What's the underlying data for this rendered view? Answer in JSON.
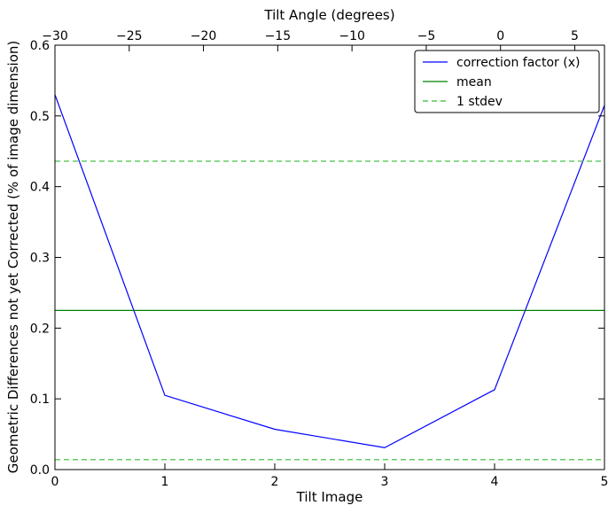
{
  "chart_data": {
    "type": "line",
    "xlabel": "Tilt Image",
    "ylabel": "Geometric Differences not yet Corrected (% of image dimension)",
    "top_xlabel": "Tilt Angle (degrees)",
    "xlim": [
      0,
      5
    ],
    "ylim": [
      0,
      0.6
    ],
    "top_xlim": [
      -30,
      7
    ],
    "x_ticks": [
      0,
      1,
      2,
      3,
      4,
      5
    ],
    "x_tick_labels": [
      "0",
      "1",
      "2",
      "3",
      "4",
      "5"
    ],
    "y_ticks": [
      0.0,
      0.1,
      0.2,
      0.3,
      0.4,
      0.5,
      0.6
    ],
    "y_tick_labels": [
      "0.0",
      "0.1",
      "0.2",
      "0.3",
      "0.4",
      "0.5",
      "0.6"
    ],
    "top_ticks": [
      -30,
      -25,
      -20,
      -15,
      -10,
      -5,
      0,
      5
    ],
    "top_tick_labels": [
      "−30",
      "−25",
      "−20",
      "−15",
      "−10",
      "−5",
      "0",
      "5"
    ],
    "grid": false,
    "legend_position": "top-right",
    "series": [
      {
        "name": "correction factor (x)",
        "style": "solid",
        "color": "#0000ff",
        "x": [
          0,
          1,
          2,
          3,
          4,
          5
        ],
        "y": [
          0.53,
          0.105,
          0.057,
          0.031,
          0.113,
          0.515
        ]
      },
      {
        "name": "mean",
        "style": "solid",
        "color": "#008000",
        "x": [
          0,
          5
        ],
        "y": [
          0.225,
          0.225
        ]
      },
      {
        "name": "1 stdev",
        "style": "dashed",
        "color": "#33bb33",
        "x": [
          0,
          5
        ],
        "y": [
          0.436,
          0.436
        ]
      },
      {
        "name": "",
        "style": "dashed",
        "color": "#33bb33",
        "x": [
          0,
          5
        ],
        "y": [
          0.014,
          0.014
        ]
      }
    ]
  }
}
